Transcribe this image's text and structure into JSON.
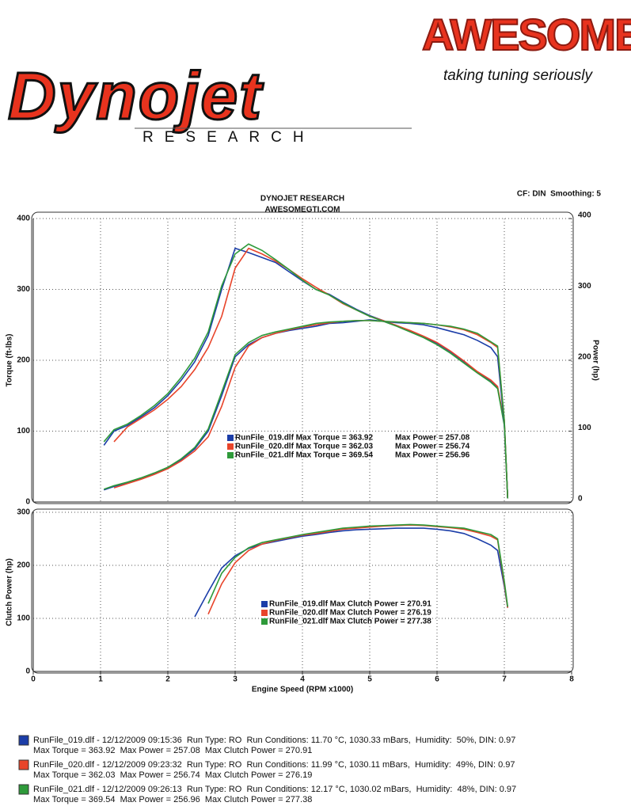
{
  "header": {
    "logo": "Dynojet",
    "logo_sub": "RESEARCH",
    "brand": "AWESOME",
    "tagline": "taking tuning seriously"
  },
  "chart_data": [
    {
      "type": "line",
      "title": "DYNOJET RESEARCH",
      "subtitle": "AWESOMEGTI.COM",
      "note": "CF: DIN  Smoothing: 5",
      "ylabel": "Torque (ft-lbs)",
      "y2label": "Power (hp)",
      "xlim": [
        0,
        8
      ],
      "ylim": [
        0,
        400
      ],
      "yticks": [
        0,
        100,
        200,
        300,
        400
      ],
      "y2lim": [
        0,
        400
      ],
      "y2ticks": [
        0,
        100,
        200,
        300,
        400
      ],
      "grid": true,
      "x": [
        1.05,
        1.2,
        1.4,
        1.6,
        1.8,
        2.0,
        2.2,
        2.4,
        2.6,
        2.8,
        3.0,
        3.2,
        3.4,
        3.6,
        3.8,
        4.0,
        4.2,
        4.4,
        4.6,
        4.8,
        5.0,
        5.2,
        5.4,
        5.6,
        5.8,
        6.0,
        6.2,
        6.4,
        6.6,
        6.8,
        6.9,
        7.0,
        7.05
      ],
      "series": [
        {
          "name": "RunFile_019.dlf",
          "color": "#1b3da8",
          "values": [
            80,
            100,
            108,
            120,
            133,
            150,
            172,
            198,
            235,
            300,
            358,
            352,
            345,
            338,
            325,
            312,
            300,
            293,
            282,
            272,
            263,
            256,
            249,
            241,
            233,
            224,
            212,
            198,
            183,
            170,
            162,
            110,
            5
          ]
        },
        {
          "name": "RunFile_020.dlf",
          "color": "#e8442a",
          "values": [
            null,
            85,
            106,
            118,
            130,
            145,
            163,
            187,
            218,
            262,
            330,
            358,
            350,
            340,
            328,
            315,
            303,
            292,
            280,
            271,
            262,
            256,
            249,
            242,
            234,
            225,
            213,
            199,
            184,
            172,
            163,
            112,
            5
          ]
        },
        {
          "name": "RunFile_021.dlf",
          "color": "#2e9a3a",
          "values": [
            85,
            102,
            110,
            122,
            136,
            153,
            176,
            203,
            240,
            305,
            350,
            364,
            355,
            342,
            328,
            313,
            300,
            292,
            281,
            271,
            262,
            255,
            248,
            240,
            232,
            222,
            210,
            196,
            182,
            169,
            160,
            108,
            5
          ]
        },
        {
          "name": "RunFile_019.dlf",
          "color": "#1b3da8",
          "axis": "y2",
          "values": [
            17,
            22,
            27,
            33,
            40,
            48,
            60,
            75,
            100,
            150,
            205,
            222,
            232,
            238,
            242,
            245,
            248,
            252,
            253,
            255,
            257,
            255,
            253,
            252,
            250,
            246,
            241,
            236,
            228,
            218,
            205,
            110,
            5
          ]
        },
        {
          "name": "RunFile_020.dlf",
          "color": "#e8442a",
          "axis": "y2",
          "values": [
            null,
            20,
            26,
            32,
            39,
            47,
            58,
            72,
            92,
            135,
            190,
            220,
            232,
            238,
            243,
            247,
            250,
            253,
            255,
            256,
            256,
            255,
            254,
            253,
            252,
            250,
            247,
            243,
            236,
            225,
            218,
            115,
            5
          ]
        },
        {
          "name": "RunFile_021.dlf",
          "color": "#2e9a3a",
          "axis": "y2",
          "values": [
            18,
            23,
            28,
            34,
            41,
            49,
            61,
            77,
            103,
            155,
            208,
            225,
            235,
            240,
            244,
            248,
            252,
            254,
            255,
            256,
            256,
            255,
            254,
            253,
            252,
            250,
            248,
            244,
            238,
            226,
            220,
            115,
            5
          ]
        }
      ],
      "legend": [
        {
          "label": "RunFile_019.dlf Max Torque = 363.92",
          "power": "Max Power = 257.08"
        },
        {
          "label": "RunFile_020.dlf Max Torque = 362.03",
          "power": "Max Power = 256.74"
        },
        {
          "label": "RunFile_021.dlf Max Torque = 369.54",
          "power": "Max Power = 256.96"
        }
      ]
    },
    {
      "type": "line",
      "ylabel": "Clutch Power (hp)",
      "xlabel": "Engine Speed (RPM x1000)",
      "xlim": [
        0,
        8
      ],
      "xticks": [
        0,
        1,
        2,
        3,
        4,
        5,
        6,
        7,
        8
      ],
      "ylim": [
        0,
        300
      ],
      "yticks": [
        0,
        100,
        200,
        300
      ],
      "grid": true,
      "x": [
        2.4,
        2.6,
        2.8,
        3.0,
        3.2,
        3.4,
        3.6,
        3.8,
        4.0,
        4.2,
        4.4,
        4.6,
        4.8,
        5.0,
        5.2,
        5.4,
        5.6,
        5.8,
        6.0,
        6.2,
        6.4,
        6.6,
        6.8,
        6.9,
        7.0,
        7.05
      ],
      "series": [
        {
          "name": "RunFile_019.dlf",
          "color": "#1b3da8",
          "values": [
            103,
            150,
            195,
            218,
            232,
            240,
            245,
            250,
            255,
            258,
            262,
            265,
            267,
            268,
            269,
            270,
            270,
            270,
            268,
            265,
            260,
            250,
            238,
            228,
            160,
            120
          ]
        },
        {
          "name": "RunFile_020.dlf",
          "color": "#e8442a",
          "values": [
            null,
            108,
            165,
            205,
            228,
            240,
            247,
            252,
            257,
            260,
            264,
            268,
            270,
            272,
            274,
            275,
            276,
            275,
            273,
            271,
            268,
            262,
            255,
            248,
            165,
            120
          ]
        },
        {
          "name": "RunFile_021.dlf",
          "color": "#2e9a3a",
          "values": [
            null,
            128,
            185,
            215,
            233,
            243,
            248,
            253,
            258,
            262,
            266,
            270,
            272,
            274,
            275,
            276,
            277,
            276,
            274,
            272,
            270,
            264,
            258,
            250,
            170,
            122
          ]
        }
      ],
      "legend": [
        "RunFile_019.dlf Max Clutch Power = 270.91",
        "RunFile_020.dlf Max Clutch Power = 276.19",
        "RunFile_021.dlf Max Clutch Power = 277.38"
      ]
    }
  ],
  "footer": {
    "runs": [
      {
        "color": "#1b3da8",
        "line1": "RunFile_019.dlf - 12/12/2009 09:15:36  Run Type: RO  Run Conditions: 11.70 °C, 1030.33 mBars,  Humidity:  50%, DIN: 0.97",
        "line2": "Max Torque = 363.92  Max Power = 257.08  Max Clutch Power = 270.91"
      },
      {
        "color": "#e8442a",
        "line1": "RunFile_020.dlf - 12/12/2009 09:23:32  Run Type: RO  Run Conditions: 11.99 °C, 1030.11 mBars,  Humidity:  49%, DIN: 0.97",
        "line2": "Max Torque = 362.03  Max Power = 256.74  Max Clutch Power = 276.19"
      },
      {
        "color": "#2e9a3a",
        "line1": "RunFile_021.dlf - 12/12/2009 09:26:13  Run Type: RO  Run Conditions: 12.17 °C, 1030.02 mBars,  Humidity:  48%, DIN: 0.97",
        "line2": "Max Torque = 369.54  Max Power = 256.96  Max Clutch Power = 277.38"
      }
    ]
  }
}
